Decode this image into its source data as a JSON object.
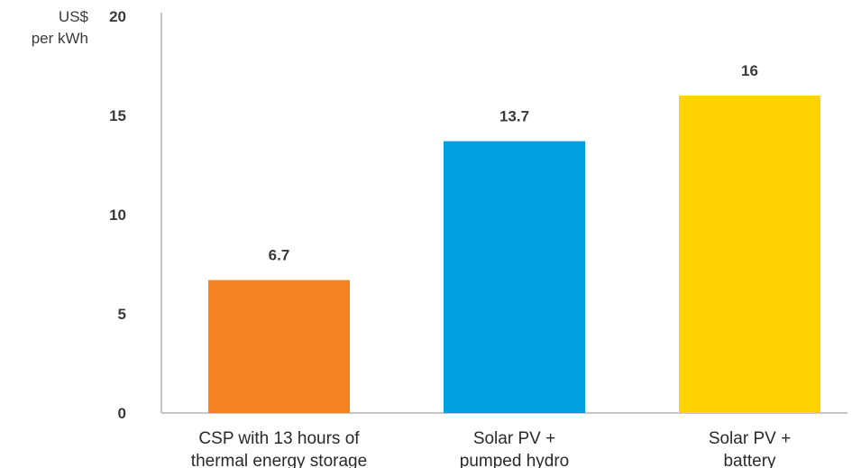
{
  "chart_data": {
    "type": "bar",
    "title": "",
    "xlabel": "",
    "ylabel": "",
    "unit_label": [
      "US$",
      "per kWh"
    ],
    "categories": [
      [
        "CSP with 13 hours of",
        "thermal energy storage"
      ],
      [
        "Solar PV +",
        "pumped hydro"
      ],
      [
        "Solar PV +",
        "battery"
      ]
    ],
    "values": [
      6.7,
      13.7,
      16
    ],
    "value_labels": [
      "6.7",
      "13.7",
      "16"
    ],
    "colors": [
      "#F58220",
      "#009FDF",
      "#FFD200"
    ],
    "ylim": [
      0,
      20
    ],
    "yticks": [
      0,
      5,
      10,
      15,
      20
    ],
    "grid": false,
    "legend": "none"
  }
}
